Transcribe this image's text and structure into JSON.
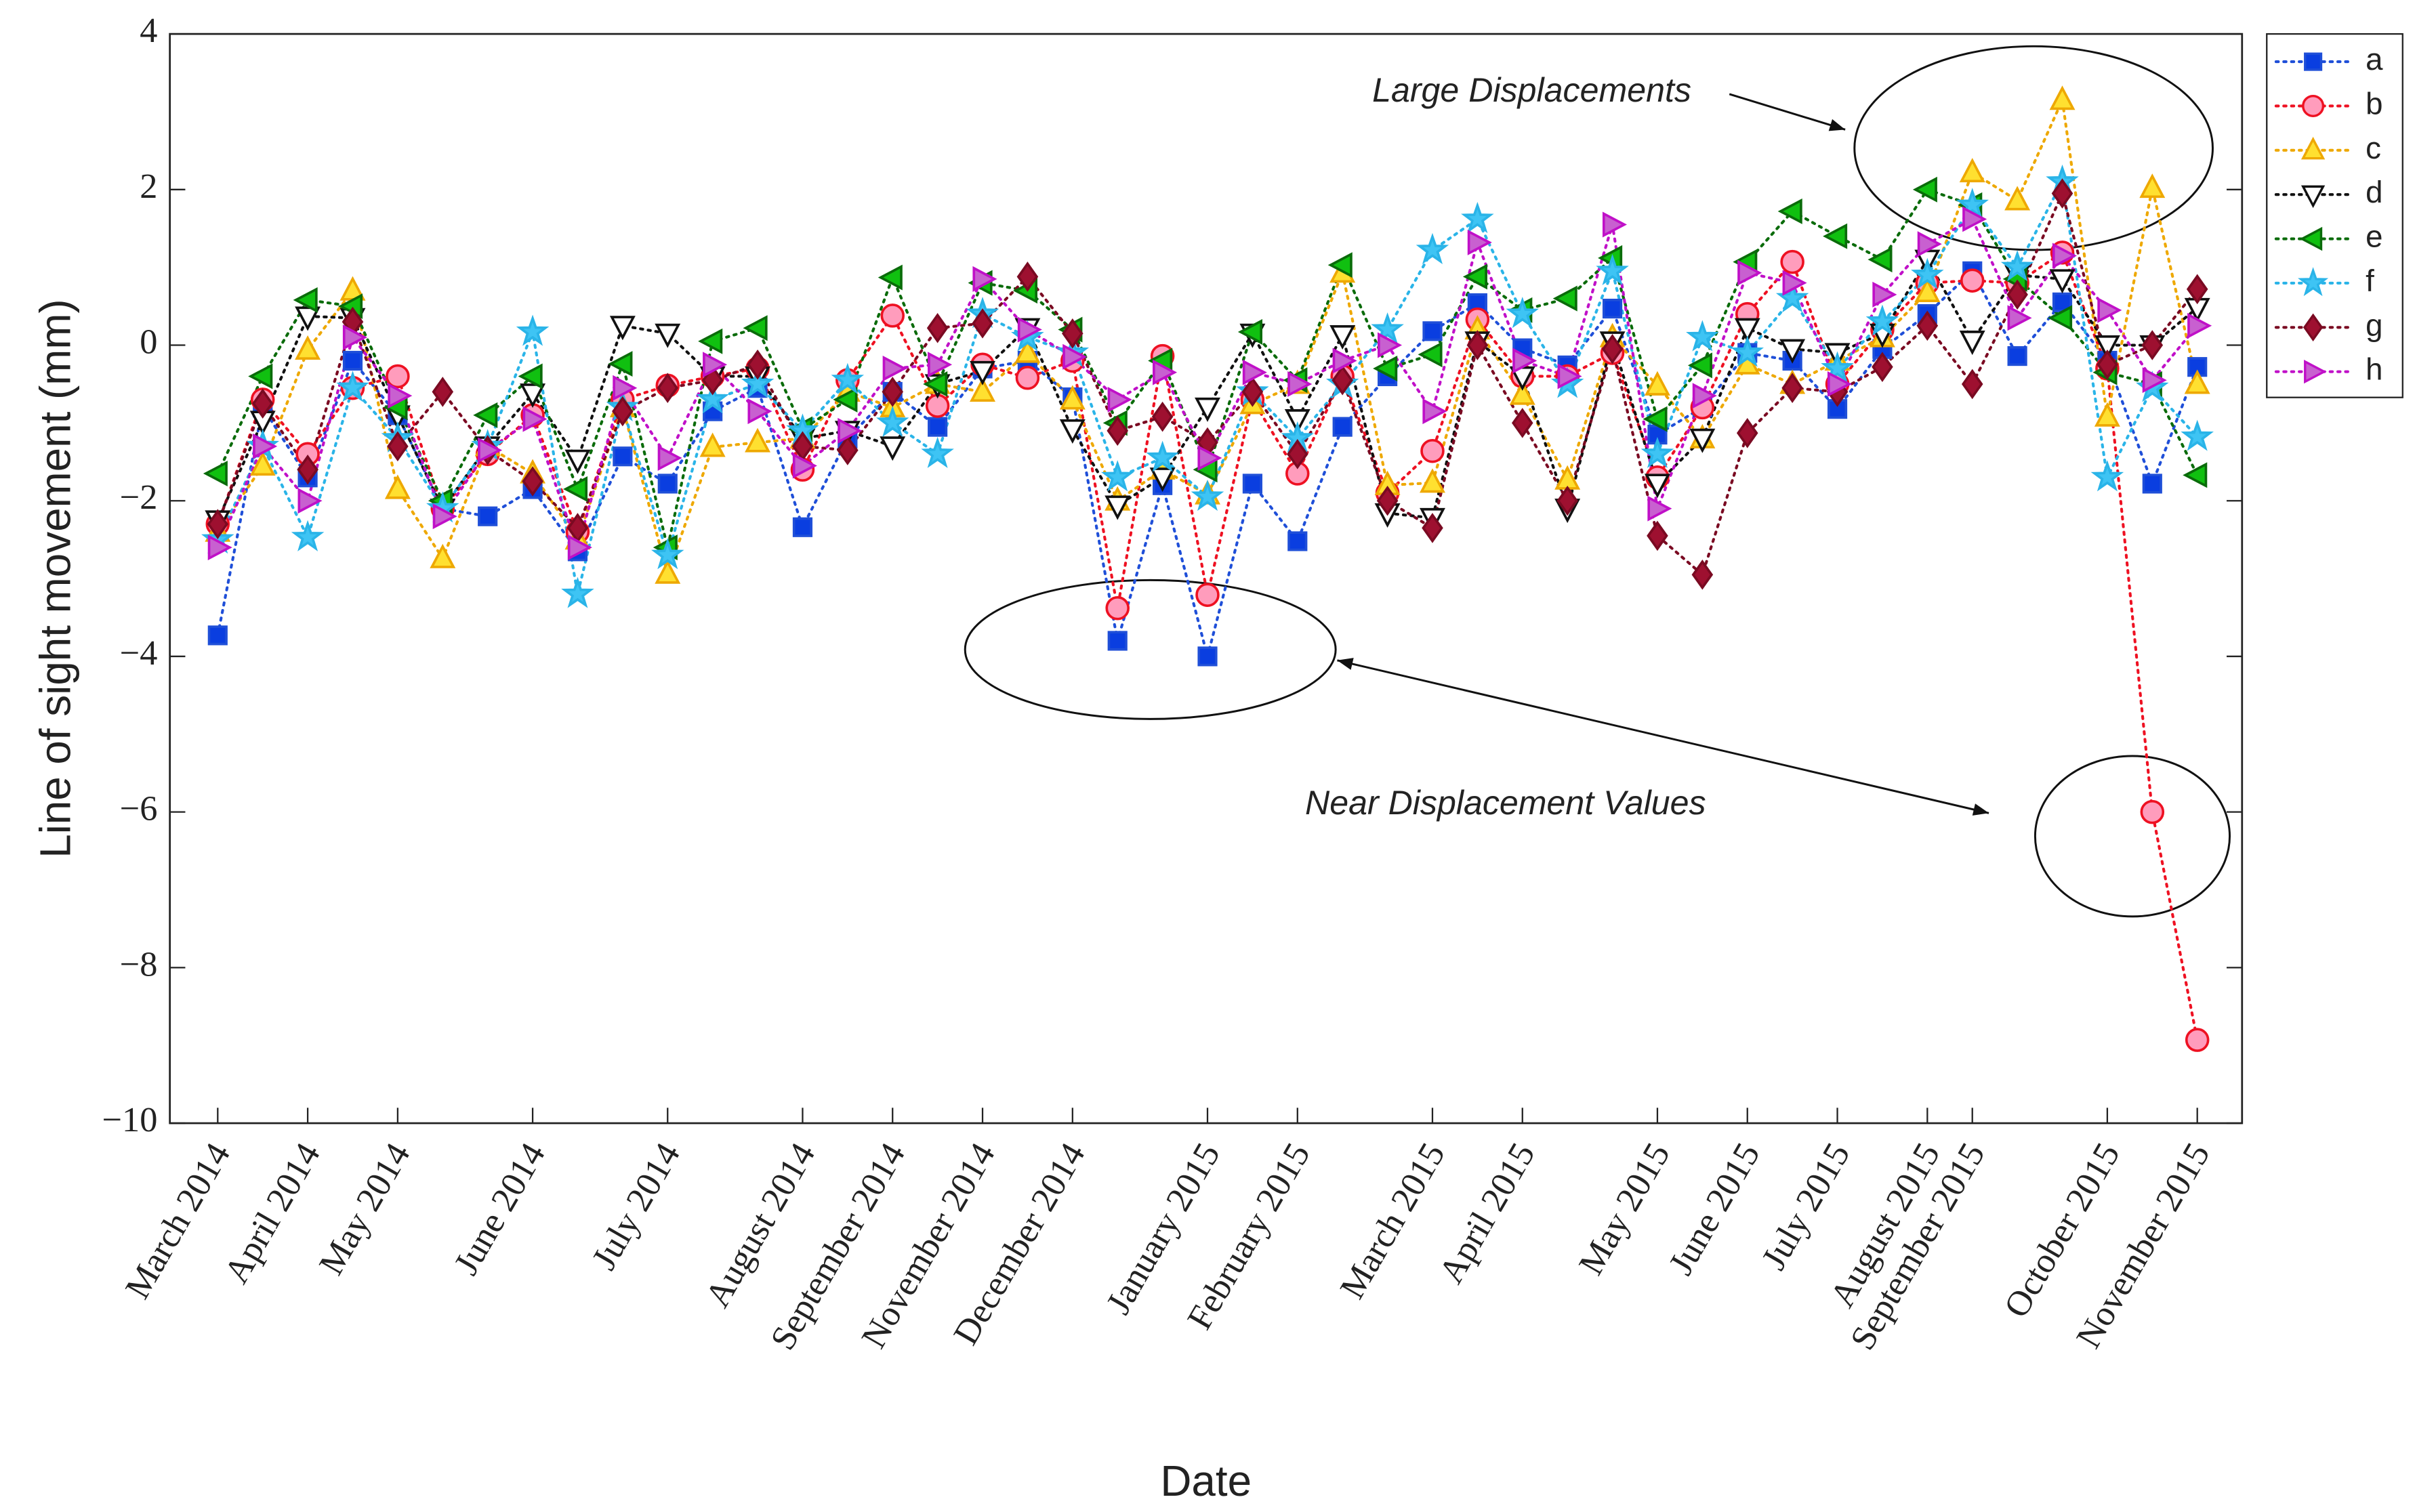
{
  "chart_data": {
    "type": "line",
    "xlabel": "Date",
    "ylabel": "Line of sight movement (mm)",
    "categories": [
      "March 2014",
      null,
      "April 2014",
      null,
      "May 2014",
      null,
      null,
      "June 2014",
      null,
      null,
      "July 2014",
      null,
      null,
      "August 2014",
      null,
      "September 2014",
      null,
      "November 2014",
      null,
      "December 2014",
      null,
      null,
      "January 2015",
      null,
      "February 2015",
      null,
      null,
      "March 2015",
      null,
      "April 2015",
      null,
      null,
      "May 2015",
      null,
      "June 2015",
      null,
      "July 2015",
      null,
      "August 2015",
      "September 2015",
      null,
      null,
      "October 2015",
      null,
      "November 2015"
    ],
    "ylim": [
      -10,
      4
    ],
    "yticks": [
      {
        "value": -10,
        "label": "−10"
      },
      {
        "value": -8,
        "label": "−8"
      },
      {
        "value": -6,
        "label": "−6"
      },
      {
        "value": -4,
        "label": "−4"
      },
      {
        "value": -2,
        "label": "−2"
      },
      0,
      2,
      4
    ],
    "grid": false,
    "legend": "outside-right-top",
    "annotations": [
      "Large Displacements",
      "Near Displacement Values"
    ],
    "series": [
      {
        "name": "a",
        "color": "#1f4fd8",
        "marker": "square",
        "marker_fill": "#0a3ee0",
        "values": [
          -3.73,
          -0.8,
          -1.7,
          -0.2,
          -0.9,
          -2.1,
          -2.2,
          -1.85,
          -2.65,
          -1.43,
          -1.78,
          -0.85,
          -0.55,
          -2.34,
          -1.2,
          -0.6,
          -1.05,
          -0.3,
          -0.2,
          -0.67,
          -3.8,
          -1.8,
          -4.0,
          -1.78,
          -2.52,
          -1.05,
          -0.4,
          0.18,
          0.54,
          -0.04,
          -0.26,
          0.47,
          -1.15,
          -0.8,
          -0.1,
          -0.2,
          -0.82,
          -0.05,
          0.4,
          0.95,
          -0.14,
          0.55,
          -0.2,
          -1.78,
          -0.28
        ]
      },
      {
        "name": "b",
        "color": "#ee1122",
        "marker": "circle",
        "marker_fill": "#ff9cbc",
        "values": [
          -2.3,
          -0.7,
          -1.4,
          -0.55,
          -0.4,
          -2.1,
          -1.4,
          -0.9,
          -2.4,
          -0.7,
          -0.52,
          -0.4,
          -0.3,
          -1.6,
          -0.45,
          0.38,
          -0.78,
          -0.25,
          -0.42,
          -0.2,
          -3.38,
          -0.14,
          -3.21,
          -0.7,
          -1.65,
          -0.4,
          -1.9,
          -1.36,
          0.33,
          -0.4,
          -0.4,
          -0.1,
          -1.7,
          -0.8,
          0.4,
          1.07,
          -0.5,
          0.2,
          0.8,
          0.83,
          0.8,
          1.19,
          -0.3,
          -6.0,
          -8.93
        ]
      },
      {
        "name": "c",
        "color": "#eea800",
        "marker": "triangle-up",
        "marker_fill": "#ffe030",
        "values": [
          -2.4,
          -1.55,
          -0.06,
          0.7,
          -1.85,
          -2.74,
          -1.3,
          -1.65,
          -2.5,
          -0.8,
          -2.94,
          -1.31,
          -1.25,
          -1.2,
          -0.6,
          -0.8,
          -0.5,
          -0.6,
          -0.1,
          -0.7,
          -2.0,
          -1.6,
          -1.92,
          -0.76,
          -0.5,
          0.93,
          -1.8,
          -1.77,
          0.2,
          -0.64,
          -1.73,
          0.1,
          -0.52,
          -1.2,
          -0.25,
          -0.5,
          -0.2,
          0.1,
          0.68,
          2.22,
          1.86,
          3.15,
          -0.92,
          2.02,
          -0.5
        ]
      },
      {
        "name": "d",
        "color": "#111111",
        "marker": "triangle-down",
        "marker_fill": "#ffffff",
        "values": [
          -2.25,
          -0.97,
          0.37,
          0.35,
          -0.9,
          -2.1,
          -1.3,
          -0.62,
          -1.47,
          0.25,
          0.15,
          -0.4,
          -0.4,
          -1.2,
          -1.1,
          -1.3,
          -0.5,
          -0.33,
          0.22,
          -1.08,
          -2.06,
          -1.7,
          -0.8,
          0.15,
          -0.95,
          0.13,
          -2.16,
          -2.22,
          0.05,
          -0.4,
          -2.1,
          0.05,
          -1.78,
          -1.2,
          0.22,
          -0.05,
          -0.1,
          0.15,
          1.1,
          0.06,
          0.9,
          0.85,
          0.0,
          0.0,
          0.48
        ]
      },
      {
        "name": "e",
        "color": "#0a6b0a",
        "marker": "triangle-left",
        "marker_fill": "#10c010",
        "values": [
          -1.65,
          -0.4,
          0.58,
          0.5,
          -0.8,
          -2.0,
          -0.9,
          -0.4,
          -1.85,
          -0.24,
          -2.6,
          0.05,
          0.22,
          -1.08,
          -0.7,
          0.87,
          -0.5,
          0.8,
          0.7,
          0.2,
          -1.0,
          -0.2,
          -1.6,
          0.17,
          -0.45,
          1.03,
          -0.3,
          -0.12,
          0.88,
          0.45,
          0.6,
          1.12,
          -0.95,
          -0.26,
          1.07,
          1.72,
          1.4,
          1.1,
          2.0,
          1.8,
          0.85,
          0.35,
          -0.35,
          -0.5,
          -1.67
        ]
      },
      {
        "name": "f",
        "color": "#2ab4e8",
        "marker": "star",
        "marker_fill": "#3ec4f4",
        "values": [
          -2.5,
          -1.3,
          -2.47,
          -0.55,
          -1.2,
          -2.1,
          -1.3,
          0.17,
          -3.2,
          -0.8,
          -2.7,
          -0.7,
          -0.5,
          -1.1,
          -0.45,
          -1.0,
          -1.4,
          0.4,
          0.1,
          -0.1,
          -1.7,
          -1.45,
          -1.95,
          -0.6,
          -1.2,
          -0.5,
          0.2,
          1.22,
          1.62,
          0.4,
          -0.5,
          0.95,
          -1.4,
          0.1,
          -0.1,
          0.6,
          -0.3,
          0.3,
          0.9,
          1.8,
          1.0,
          2.1,
          -1.7,
          -0.55,
          -1.18
        ]
      },
      {
        "name": "g",
        "color": "#7a0a22",
        "marker": "diamond",
        "marker_fill": "#9e1030",
        "values": [
          -2.3,
          -0.75,
          -1.6,
          0.3,
          -1.3,
          -0.6,
          -1.35,
          -1.75,
          -2.35,
          -0.85,
          -0.55,
          -0.45,
          -0.25,
          -1.3,
          -1.35,
          -0.6,
          0.22,
          0.28,
          0.88,
          0.15,
          -1.1,
          -0.92,
          -1.25,
          -0.6,
          -1.4,
          -0.45,
          -2.0,
          -2.35,
          0.0,
          -1.0,
          -2.0,
          -0.05,
          -2.45,
          -2.95,
          -1.13,
          -0.55,
          -0.6,
          -0.28,
          0.25,
          -0.5,
          0.65,
          1.95,
          -0.25,
          0.0,
          0.72
        ]
      },
      {
        "name": "h",
        "color": "#c010c8",
        "marker": "triangle-right",
        "marker_fill": "#c860d0",
        "values": [
          -2.6,
          -1.3,
          -2.0,
          0.1,
          -0.65,
          -2.2,
          -1.35,
          -0.95,
          -2.6,
          -0.55,
          -1.45,
          -0.25,
          -0.85,
          -1.55,
          -1.1,
          -0.3,
          -0.25,
          0.85,
          0.2,
          -0.15,
          -0.7,
          -0.35,
          -1.45,
          -0.35,
          -0.5,
          -0.2,
          0.0,
          -0.85,
          1.32,
          -0.2,
          -0.4,
          1.55,
          -2.1,
          -0.65,
          0.93,
          0.8,
          -0.5,
          0.65,
          1.3,
          1.62,
          0.35,
          1.15,
          0.45,
          -0.45,
          0.25
        ]
      }
    ]
  }
}
